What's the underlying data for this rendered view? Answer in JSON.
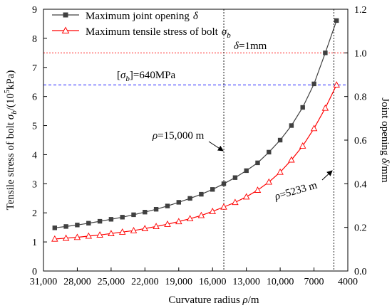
{
  "chart_data": {
    "type": "line",
    "x_axis": {
      "label_main": "Curvature radius ",
      "label_sym": "ρ",
      "label_unit": "/m",
      "range": [
        31000,
        4000
      ],
      "reversed": true,
      "ticks": [
        31000,
        28000,
        25000,
        22000,
        19000,
        16000,
        13000,
        10000,
        7000,
        4000
      ],
      "tick_labels": [
        "31,000",
        "28,000",
        "25,000",
        "22,000",
        "19,000",
        "16,000",
        "13,000",
        "10,000",
        "7000",
        "4000"
      ]
    },
    "y_left": {
      "label_main": "Tensile stress of bolt ",
      "label_sym": "σ",
      "label_sub": "b",
      "label_unit": "/(10",
      "label_sup": "5",
      "label_end": "kPa)",
      "range": [
        0,
        9
      ],
      "ticks": [
        0,
        1,
        2,
        3,
        4,
        5,
        6,
        7,
        8,
        9
      ],
      "tick_labels": [
        "0",
        "1",
        "2",
        "3",
        "4",
        "5",
        "6",
        "7",
        "8",
        "9"
      ]
    },
    "y_right": {
      "label_main": "Joint opening ",
      "label_sym": "δ",
      "label_unit": "/mm",
      "range": [
        0,
        1.2
      ],
      "ticks": [
        0,
        0.2,
        0.4,
        0.6,
        0.8,
        1.0,
        1.2
      ],
      "tick_labels": [
        "0.0",
        "0.2",
        "0.4",
        "0.6",
        "0.8",
        "1.0",
        "1.2"
      ]
    },
    "x": [
      30000,
      29000,
      28000,
      27000,
      26000,
      25000,
      24000,
      23000,
      22000,
      21000,
      20000,
      19000,
      18000,
      17000,
      16000,
      15000,
      14000,
      13000,
      12000,
      11000,
      10000,
      9000,
      8000,
      7000,
      6000,
      5000
    ],
    "series": [
      {
        "name": "Maximum joint opening",
        "name_sym": "δ",
        "axis": "right",
        "color": "#404040",
        "marker": "square-filled",
        "values": [
          0.198,
          0.204,
          0.211,
          0.219,
          0.228,
          0.237,
          0.247,
          0.258,
          0.27,
          0.283,
          0.298,
          0.315,
          0.333,
          0.352,
          0.374,
          0.4,
          0.428,
          0.46,
          0.496,
          0.545,
          0.6,
          0.667,
          0.75,
          0.858,
          1.0,
          1.148
        ]
      },
      {
        "name": "Maximum tensile stress of bolt",
        "name_sym": "σ",
        "name_sub": "b",
        "axis": "left",
        "color": "#ff0000",
        "marker": "triangle-open",
        "values": [
          1.1,
          1.13,
          1.16,
          1.2,
          1.24,
          1.29,
          1.34,
          1.39,
          1.46,
          1.53,
          1.61,
          1.7,
          1.8,
          1.91,
          2.05,
          2.2,
          2.36,
          2.55,
          2.78,
          3.06,
          3.4,
          3.82,
          4.3,
          4.9,
          5.6,
          6.4
        ]
      }
    ],
    "reference_lines": [
      {
        "orientation": "horizontal",
        "axis": "left",
        "value": 7.5,
        "color": "#ff0000",
        "style": "dotted"
      },
      {
        "orientation": "horizontal",
        "axis": "left",
        "value": 6.4,
        "color": "#0000ff",
        "style": "dashed"
      },
      {
        "orientation": "vertical",
        "value": 15000,
        "color": "#000000",
        "style": "dotted"
      },
      {
        "orientation": "vertical",
        "value": 5233,
        "color": "#000000",
        "style": "dotted"
      }
    ],
    "annotations": {
      "delta_label": "=1mm",
      "delta_sym": "δ",
      "sigma_label": "]=640MPa",
      "sigma_open": "[",
      "sigma_sym": "σ",
      "sigma_sub": "b",
      "rho1_sym": "ρ",
      "rho1_label": "=15,000 m",
      "rho2_sym": "ρ",
      "rho2_label": "=5233 m"
    },
    "legend_position": "top-left",
    "grid": false
  }
}
